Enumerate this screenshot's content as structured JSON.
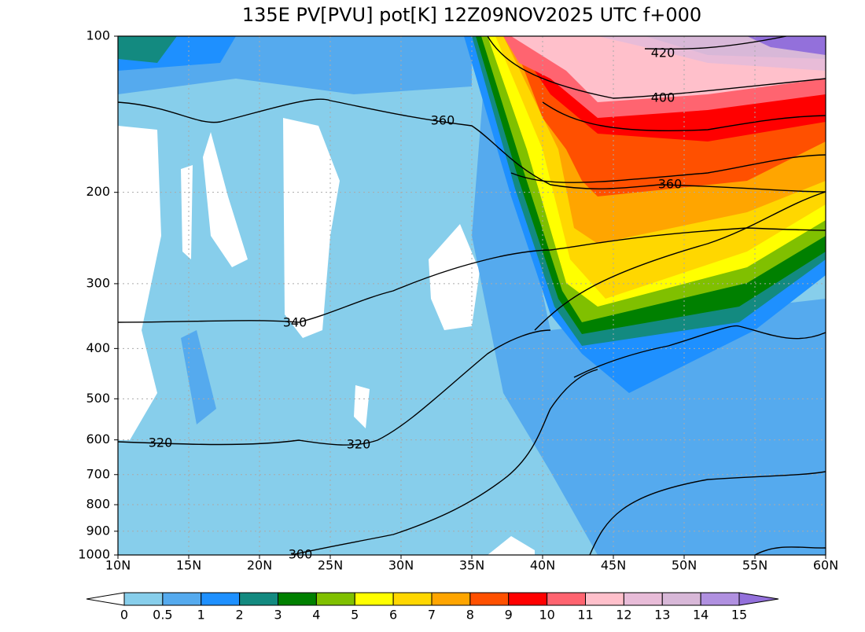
{
  "chart_data": {
    "type": "contour",
    "title": "135E PV[PVU] pot[K] 12Z09NOV2025 UTC f+000",
    "xlim": [
      10,
      60
    ],
    "xticks": [
      {
        "value": 10,
        "label": "10N"
      },
      {
        "value": 15,
        "label": "15N"
      },
      {
        "value": 20,
        "label": "20N"
      },
      {
        "value": 25,
        "label": "25N"
      },
      {
        "value": 30,
        "label": "30N"
      },
      {
        "value": 35,
        "label": "35N"
      },
      {
        "value": 40,
        "label": "40N"
      },
      {
        "value": 45,
        "label": "45N"
      },
      {
        "value": 50,
        "label": "50N"
      },
      {
        "value": 55,
        "label": "55N"
      },
      {
        "value": 60,
        "label": "60N"
      }
    ],
    "ylim": [
      1000,
      100
    ],
    "yticks": [
      100,
      200,
      300,
      400,
      500,
      600,
      700,
      800,
      900,
      1000
    ],
    "log_scale_y": true,
    "grid": true,
    "contour_labels": [
      420,
      400,
      360,
      360,
      340,
      320,
      320,
      300
    ],
    "colorbar": {
      "levels": [
        0,
        0.5,
        1,
        2,
        3,
        4,
        5,
        6,
        7,
        8,
        9,
        10,
        11,
        12,
        13,
        14,
        15
      ],
      "colors": [
        "#87ceeb",
        "#55aaee",
        "#1e90ff",
        "#138a80",
        "#008000",
        "#80c000",
        "#ffff00",
        "#ffd700",
        "#ffa500",
        "#ff5000",
        "#ff0000",
        "#ff6470",
        "#ffc0cb",
        "#e8bcd8",
        "#d8b8d8",
        "#b090e0"
      ],
      "under": "#ffffff",
      "over": "#9370db"
    }
  }
}
